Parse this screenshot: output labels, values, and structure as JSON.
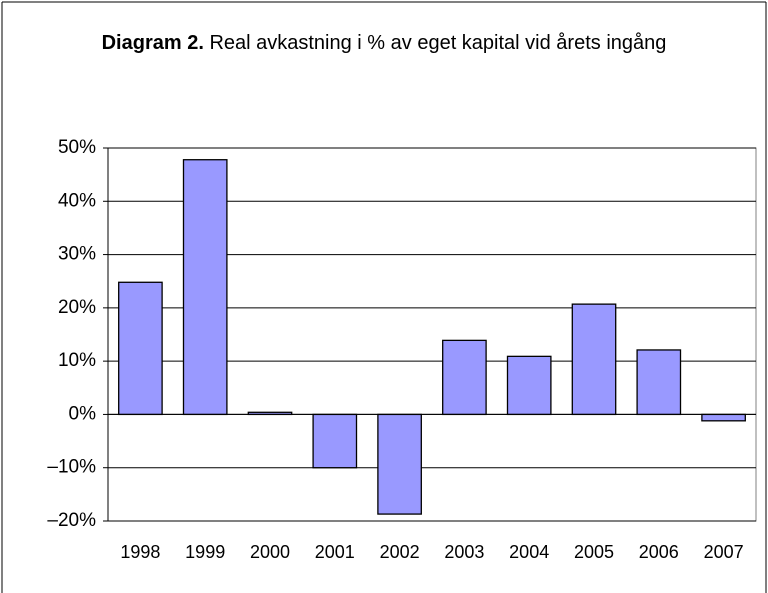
{
  "chart_data": {
    "type": "bar",
    "title_label": "Diagram 2.",
    "title": "Real avkastning i % av eget kapital vid årets ingång",
    "categories": [
      "1998",
      "1999",
      "2000",
      "2001",
      "2002",
      "2003",
      "2004",
      "2005",
      "2006",
      "2007"
    ],
    "values": [
      24.8,
      47.8,
      0.4,
      -10,
      -18.7,
      13.9,
      10.9,
      20.7,
      12.1,
      -1.2
    ],
    "color": "#9999ff",
    "ylim": [
      -20,
      50
    ],
    "yticks": [
      {
        "value": -20,
        "label": "–20%"
      },
      {
        "value": -10,
        "label": "–10%"
      },
      {
        "value": 0,
        "label": "0%"
      },
      {
        "value": 10,
        "label": "10%"
      },
      {
        "value": 20,
        "label": "20%"
      },
      {
        "value": 30,
        "label": "30%"
      },
      {
        "value": 40,
        "label": "40%"
      },
      {
        "value": 50,
        "label": "50%"
      }
    ],
    "grid": true
  }
}
